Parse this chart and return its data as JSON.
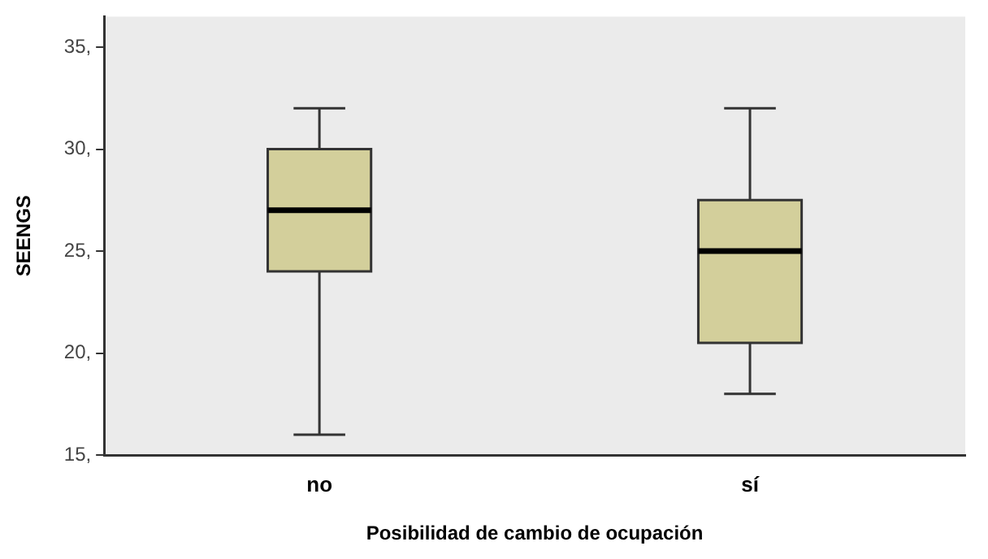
{
  "chart_data": {
    "type": "box",
    "xlabel": "Posibilidad de cambio de ocupación",
    "ylabel": "SEENGS",
    "categories": [
      "no",
      "sí"
    ],
    "boxes": [
      {
        "low": 16,
        "q1": 24,
        "median": 27,
        "q3": 30,
        "high": 32
      },
      {
        "low": 18,
        "q1": 20.5,
        "median": 25,
        "q3": 27.5,
        "high": 32
      }
    ],
    "color": "#d3cf9b",
    "ylim": [
      15,
      36.5
    ],
    "yticks": [
      {
        "value": 15,
        "label": "15,"
      },
      {
        "value": 20,
        "label": "20,"
      },
      {
        "value": 25,
        "label": "25,"
      },
      {
        "value": 30,
        "label": "30,"
      },
      {
        "value": 35,
        "label": "35,"
      }
    ],
    "grid": false,
    "legend": false
  }
}
